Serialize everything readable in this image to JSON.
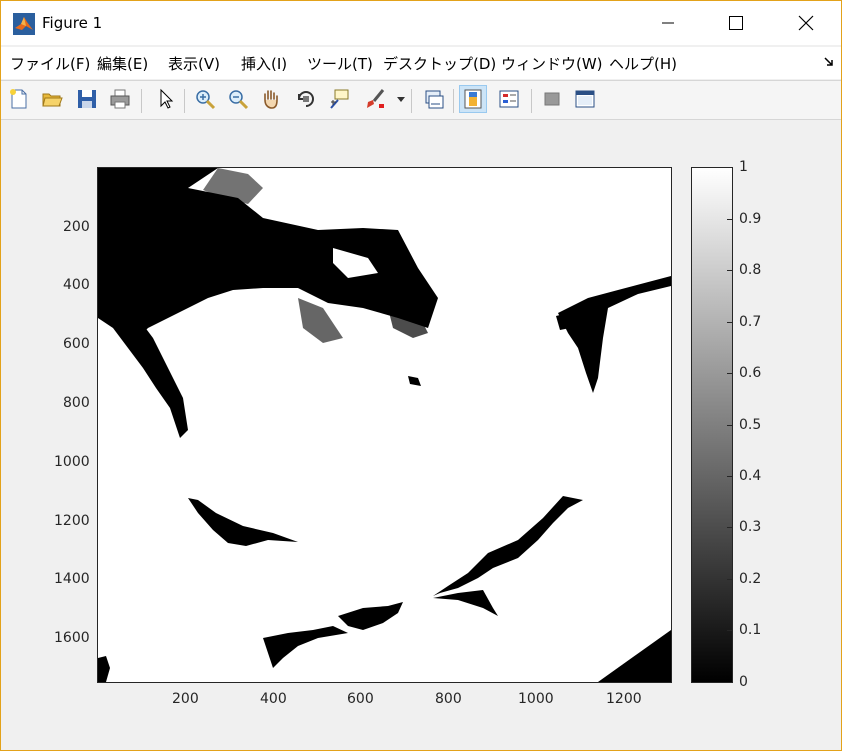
{
  "window": {
    "title": "Figure 1"
  },
  "menu": [
    "ファイル(F)",
    "編集(E)",
    "表示(V)",
    "挿入(I)",
    "ツール(T)",
    "デスクトップ(D)",
    "ウィンドウ(W)",
    "ヘルプ(H)"
  ],
  "toolbar": {
    "icons": [
      "new-figure-icon",
      "open-file-icon",
      "save-icon",
      "print-icon",
      "pointer-icon",
      "zoom-in-icon",
      "zoom-out-icon",
      "pan-icon",
      "rotate-3d-icon",
      "data-cursor-icon",
      "brush-icon",
      "link-plot-icon",
      "insert-colorbar-icon",
      "insert-legend-icon",
      "hide-plot-tools-icon",
      "show-plot-tools-icon"
    ]
  },
  "plot": {
    "type": "binary image (imagesc)",
    "colormap": "gray",
    "x_ticks": [
      "200",
      "400",
      "600",
      "800",
      "1000",
      "1200"
    ],
    "y_ticks": [
      "200",
      "400",
      "600",
      "800",
      "1000",
      "1200",
      "1400",
      "1600"
    ],
    "colorbar_ticks": [
      "1",
      "0.9",
      "0.8",
      "0.7",
      "0.6",
      "0.5",
      "0.4",
      "0.3",
      "0.2",
      "0.1",
      "0"
    ]
  }
}
